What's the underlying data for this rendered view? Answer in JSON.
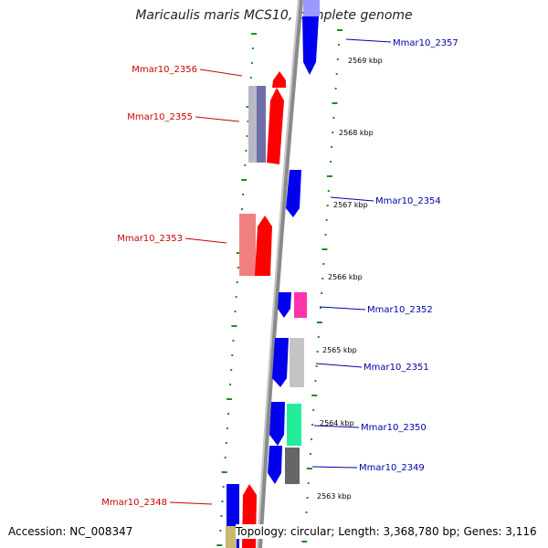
{
  "title": "Maricaulis maris MCS10, complete genome",
  "footer": {
    "accession": "Accession: NC_008347",
    "topology": "Topology: circular; Length: 3,368,780 bp; Genes: 3,116"
  },
  "colors": {
    "forward_label": "#cc0000",
    "reverse_label": "#0000aa",
    "tick": "#228b22",
    "backbone": "#888888"
  },
  "genes": [
    {
      "id": "Mmar10_2357",
      "strand": "reverse"
    },
    {
      "id": "Mmar10_2356",
      "strand": "forward"
    },
    {
      "id": "Mmar10_2355",
      "strand": "forward"
    },
    {
      "id": "Mmar10_2354",
      "strand": "reverse"
    },
    {
      "id": "Mmar10_2353",
      "strand": "forward"
    },
    {
      "id": "Mmar10_2352",
      "strand": "reverse"
    },
    {
      "id": "Mmar10_2351",
      "strand": "reverse"
    },
    {
      "id": "Mmar10_2350",
      "strand": "reverse"
    },
    {
      "id": "Mmar10_2349",
      "strand": "reverse"
    },
    {
      "id": "Mmar10_2348",
      "strand": "forward"
    }
  ],
  "positions_kbp": [
    "2569 kbp",
    "2568 kbp",
    "2567 kbp",
    "2566 kbp",
    "2565 kbp",
    "2564 kbp",
    "2563 kbp"
  ]
}
